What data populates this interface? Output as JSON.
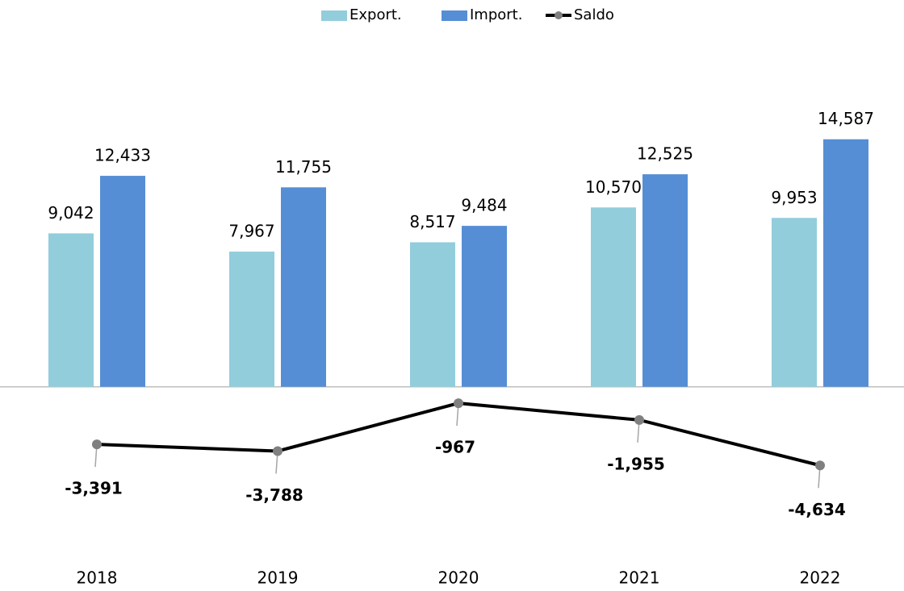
{
  "chart_data": {
    "type": "bar",
    "categories": [
      "2018",
      "2019",
      "2020",
      "2021",
      "2022"
    ],
    "series": [
      {
        "name": "Export.",
        "color": "#92cddc",
        "values": [
          9042,
          7967,
          8517,
          10570,
          9953
        ],
        "value_labels": [
          "9,042",
          "7,967",
          "8,517",
          "10,570",
          "9,953"
        ]
      },
      {
        "name": "Import.",
        "color": "#558ed5",
        "values": [
          12433,
          11755,
          9484,
          12525,
          14587
        ],
        "value_labels": [
          "12,433",
          "11,755",
          "9,484",
          "12,525",
          "14,587"
        ]
      },
      {
        "name": "Saldo",
        "type": "line",
        "color": "#000000",
        "marker_color": "#808080",
        "values": [
          -3391,
          -3788,
          -967,
          -1955,
          -4634
        ],
        "value_labels": [
          "-3,391",
          "-3,788",
          "-967",
          "-1,955",
          "-4,634"
        ]
      }
    ],
    "ylim": [
      -6000,
      16000
    ],
    "legend": "top"
  }
}
